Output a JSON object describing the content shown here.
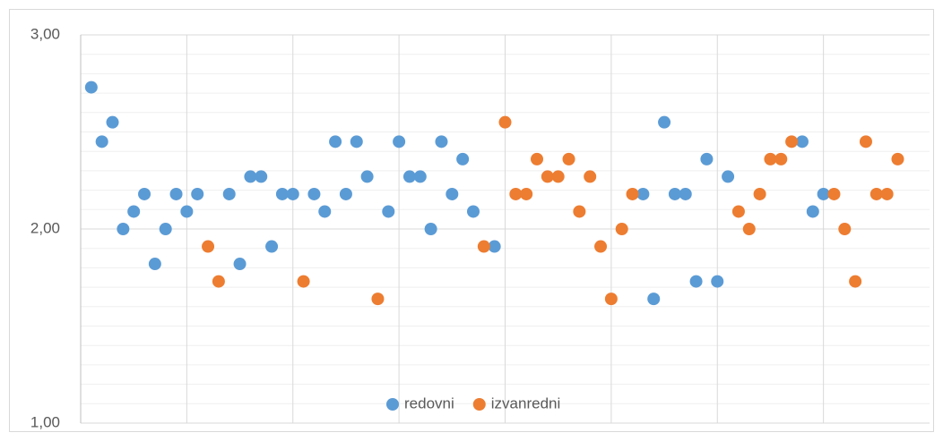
{
  "chart_data": {
    "type": "scatter",
    "xlim": [
      0,
      80
    ],
    "xticks": [
      10,
      20,
      30,
      40,
      50,
      60,
      70
    ],
    "ylim": [
      1,
      3
    ],
    "yticks": [
      {
        "value": 1,
        "label": "1,00"
      },
      {
        "value": 2,
        "label": "2,00"
      },
      {
        "value": 3,
        "label": "3,00"
      }
    ],
    "minor_yticks": [
      1.1,
      1.2,
      1.3,
      1.4,
      1.5,
      1.6,
      1.7,
      1.8,
      1.9,
      2.1,
      2.2,
      2.3,
      2.4,
      2.5,
      2.6,
      2.7,
      2.8,
      2.9
    ],
    "grid": true,
    "legend": "bottom",
    "series": [
      {
        "name": "redovni",
        "color": "#5b9bd5",
        "x": [
          1,
          2,
          3,
          4,
          5,
          6,
          7,
          8,
          9,
          10,
          11,
          14,
          15,
          16,
          17,
          18,
          19,
          20,
          22,
          23,
          24,
          25,
          26,
          27,
          29,
          30,
          31,
          32,
          33,
          34,
          35,
          36,
          37,
          39,
          53,
          54,
          55,
          56,
          57,
          58,
          59,
          60,
          61,
          68,
          69,
          70
        ],
        "values": [
          2.73,
          2.45,
          2.55,
          2.0,
          2.09,
          2.18,
          1.82,
          2.0,
          2.18,
          2.09,
          2.18,
          2.18,
          1.82,
          2.27,
          2.27,
          1.91,
          2.18,
          2.18,
          2.18,
          2.09,
          2.45,
          2.18,
          2.45,
          2.27,
          2.09,
          2.45,
          2.27,
          2.27,
          2.0,
          2.45,
          2.18,
          2.36,
          2.09,
          1.91,
          2.18,
          1.64,
          2.55,
          2.18,
          2.18,
          1.73,
          2.36,
          1.73,
          2.27,
          2.45,
          2.09,
          2.18
        ]
      },
      {
        "name": "izvanredni",
        "color": "#ed7d31",
        "x": [
          12,
          13,
          21,
          28,
          38,
          40,
          41,
          42,
          43,
          44,
          45,
          46,
          47,
          48,
          49,
          50,
          51,
          52,
          62,
          63,
          64,
          65,
          66,
          67,
          71,
          72,
          73,
          74,
          75,
          76,
          77
        ],
        "values": [
          1.91,
          1.73,
          1.73,
          1.64,
          1.91,
          2.55,
          2.18,
          2.18,
          2.36,
          2.27,
          2.27,
          2.36,
          2.09,
          2.27,
          1.91,
          1.64,
          2.0,
          2.18,
          2.09,
          2.0,
          2.18,
          2.36,
          2.36,
          2.45,
          2.18,
          2.0,
          1.73,
          2.45,
          2.18,
          2.18,
          2.36
        ]
      }
    ]
  }
}
